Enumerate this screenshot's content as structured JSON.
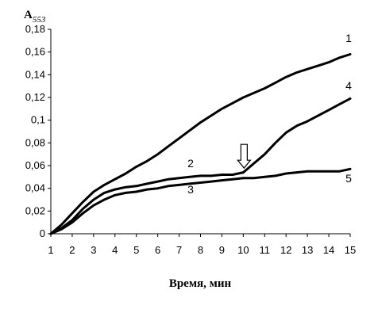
{
  "chart_data": {
    "type": "line",
    "xlabel": "Время, мин",
    "ylabel": {
      "main": "A",
      "sub": "553"
    },
    "xlim": [
      1,
      15
    ],
    "ylim": [
      0,
      0.18
    ],
    "xticks": [
      "1",
      "2",
      "3",
      "4",
      "5",
      "6",
      "7",
      "8",
      "9",
      "10",
      "11",
      "12",
      "13",
      "14",
      "15"
    ],
    "yticks": [
      "0",
      "0,02",
      "0,04",
      "0,06",
      "0,08",
      "0,1",
      "0,12",
      "0,14",
      "0,16",
      "0,18"
    ],
    "grid": false,
    "arrow_marker": {
      "x": 10,
      "y": 0.055,
      "direction": "down"
    },
    "series": [
      {
        "name": "1",
        "x": [
          1,
          1.5,
          2,
          2.5,
          3,
          3.5,
          4,
          4.5,
          5,
          5.5,
          6,
          6.5,
          7,
          7.5,
          8,
          8.5,
          9,
          9.5,
          10,
          10.5,
          11,
          11.5,
          12,
          12.5,
          13,
          13.5,
          14,
          14.5,
          15
        ],
        "values": [
          0,
          0.008,
          0.018,
          0.028,
          0.037,
          0.043,
          0.048,
          0.053,
          0.059,
          0.064,
          0.07,
          0.077,
          0.084,
          0.091,
          0.098,
          0.104,
          0.11,
          0.115,
          0.12,
          0.124,
          0.128,
          0.133,
          0.138,
          0.142,
          0.145,
          0.148,
          0.151,
          0.155,
          0.158
        ]
      },
      {
        "name": "2",
        "x": [
          1,
          1.5,
          2,
          2.5,
          3,
          3.5,
          4,
          4.5,
          5,
          5.5,
          6,
          6.5,
          7,
          7.5,
          8,
          8.5,
          9,
          9.5,
          10
        ],
        "values": [
          0,
          0.005,
          0.012,
          0.022,
          0.03,
          0.036,
          0.039,
          0.041,
          0.042,
          0.044,
          0.046,
          0.048,
          0.049,
          0.05,
          0.051,
          0.051,
          0.052,
          0.052,
          0.054
        ]
      },
      {
        "name": "3",
        "x": [
          1,
          1.5,
          2,
          2.5,
          3,
          3.5,
          4,
          4.5,
          5,
          5.5,
          6,
          6.5,
          7,
          7.5,
          8,
          8.5,
          9,
          9.5,
          10
        ],
        "values": [
          0,
          0.004,
          0.01,
          0.018,
          0.025,
          0.03,
          0.034,
          0.036,
          0.037,
          0.039,
          0.04,
          0.042,
          0.043,
          0.044,
          0.045,
          0.046,
          0.047,
          0.048,
          0.049
        ]
      },
      {
        "name": "4",
        "x": [
          10,
          10.5,
          11,
          11.5,
          12,
          12.5,
          13,
          13.5,
          14,
          14.5,
          15
        ],
        "values": [
          0.054,
          0.062,
          0.07,
          0.08,
          0.089,
          0.095,
          0.099,
          0.104,
          0.109,
          0.114,
          0.119
        ]
      },
      {
        "name": "5",
        "x": [
          10,
          10.5,
          11,
          11.5,
          12,
          12.5,
          13,
          13.5,
          14,
          14.5,
          15
        ],
        "values": [
          0.049,
          0.049,
          0.05,
          0.051,
          0.053,
          0.054,
          0.055,
          0.055,
          0.055,
          0.055,
          0.057
        ]
      }
    ]
  }
}
